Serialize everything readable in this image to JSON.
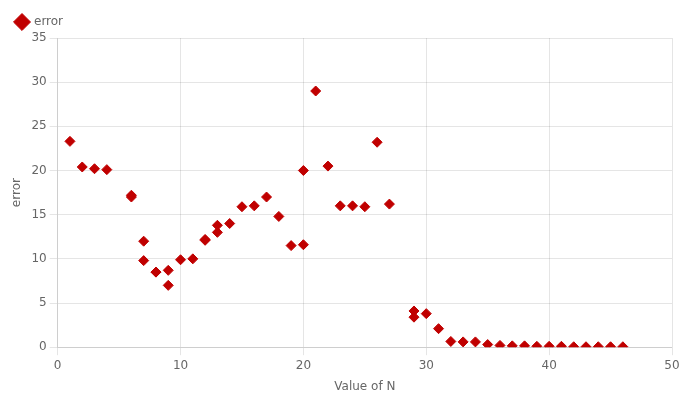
{
  "chart_data": {
    "type": "scatter",
    "xlabel": "Value of N",
    "ylabel": "error",
    "x": [
      1,
      2,
      3,
      4,
      6,
      6,
      7,
      7,
      8,
      8,
      9,
      9,
      10,
      11,
      12,
      12,
      13,
      13,
      14,
      15,
      16,
      17,
      18,
      19,
      20,
      20,
      21,
      22,
      23,
      24,
      25,
      26,
      27,
      29,
      29,
      30,
      31,
      32,
      33,
      34,
      35,
      36,
      37,
      38,
      39,
      40,
      41,
      42,
      43,
      44,
      45,
      46
    ],
    "series": [
      {
        "name": "error",
        "color": "#c00000",
        "marker": "diamond",
        "values": [
          23.3,
          20.4,
          20.2,
          20.1,
          17.2,
          17.0,
          12.0,
          9.8,
          8.5,
          8.5,
          7.0,
          8.7,
          9.9,
          10.0,
          12.2,
          12.1,
          13.0,
          13.8,
          14.0,
          15.9,
          16.0,
          17.0,
          14.8,
          11.5,
          11.6,
          20.0,
          29.0,
          20.5,
          16.0,
          16.0,
          15.9,
          23.2,
          16.2,
          4.1,
          3.4,
          3.8,
          2.1,
          0.65,
          0.6,
          0.6,
          0.3,
          0.2,
          0.15,
          0.15,
          0.1,
          0.1,
          0.1,
          0.05,
          0.05,
          0.05,
          0.05,
          0.05
        ]
      }
    ],
    "xlim": [
      0,
      50
    ],
    "ylim": [
      0,
      35
    ],
    "xticks": [
      0,
      10,
      20,
      30,
      40,
      50
    ],
    "yticks": [
      0,
      5,
      10,
      15,
      20,
      25,
      30,
      35
    ],
    "grid": true,
    "legend": "upper left"
  }
}
